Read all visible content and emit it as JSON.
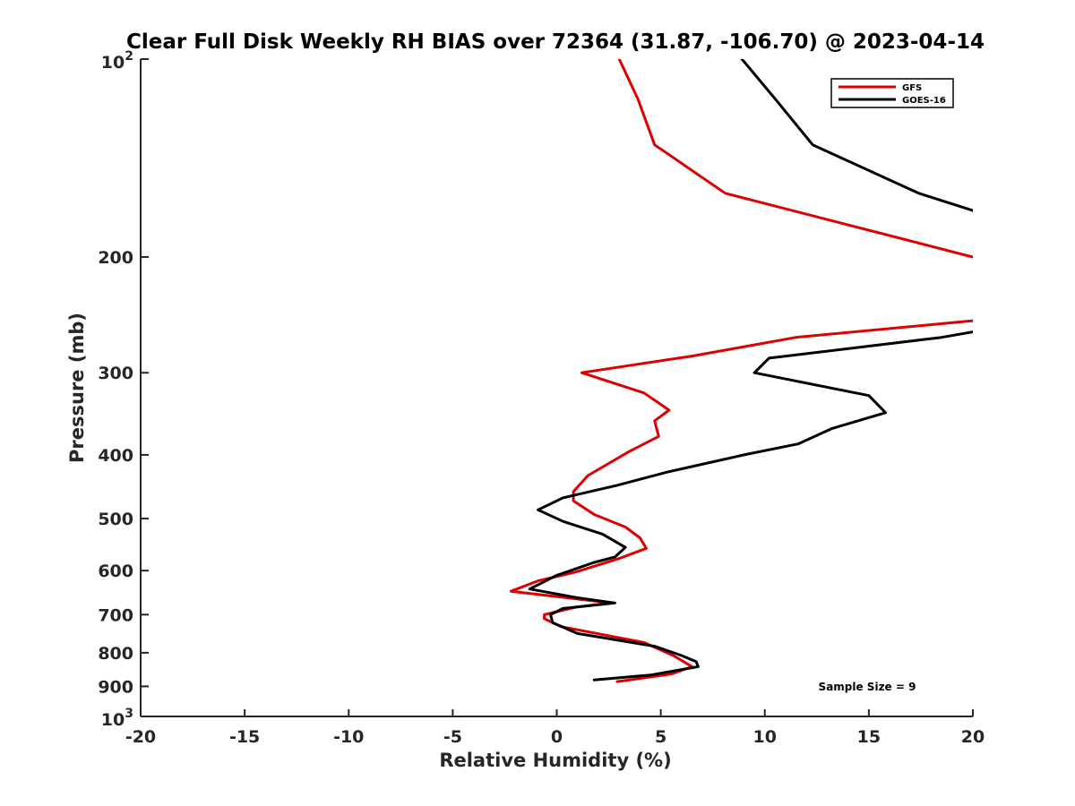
{
  "chart_data": {
    "type": "line",
    "title": "Clear Full Disk Weekly RH BIAS over 72364 (31.87, -106.70) @ 2023-04-14",
    "xlabel": "Relative Humidity (%)",
    "ylabel": "Pressure (mb)",
    "xlim": [
      -20,
      20
    ],
    "ylim": [
      100,
      1000
    ],
    "y_scale": "log",
    "y_reversed": true,
    "x_ticks": [
      "-20",
      "-15",
      "-10",
      "-5",
      "0",
      "5",
      "10",
      "15",
      "20"
    ],
    "y_ticks": [
      {
        "value": 100,
        "base": "10",
        "exp": "2"
      },
      {
        "value": 200,
        "label": "200"
      },
      {
        "value": 300,
        "label": "300"
      },
      {
        "value": 400,
        "label": "400"
      },
      {
        "value": 500,
        "label": "500"
      },
      {
        "value": 600,
        "label": "600"
      },
      {
        "value": 700,
        "label": "700"
      },
      {
        "value": 800,
        "label": "800"
      },
      {
        "value": 900,
        "label": "900"
      },
      {
        "value": 1000,
        "base": "10",
        "exp": "3"
      }
    ],
    "grid": false,
    "legend_position": "top-right",
    "series": [
      {
        "name": "GFS",
        "color": "#dd0000",
        "points": [
          [
            3.0,
            100
          ],
          [
            3.9,
            115
          ],
          [
            4.7,
            135
          ],
          [
            8.1,
            160
          ],
          [
            20.0,
            200
          ],
          [
            null,
            null
          ],
          [
            20.0,
            250
          ],
          [
            11.5,
            265
          ],
          [
            6.5,
            283
          ],
          [
            1.2,
            300
          ],
          [
            4.2,
            322
          ],
          [
            5.4,
            342
          ],
          [
            4.7,
            355
          ],
          [
            4.9,
            375
          ],
          [
            3.5,
            395
          ],
          [
            1.5,
            430
          ],
          [
            0.8,
            455
          ],
          [
            0.8,
            470
          ],
          [
            1.8,
            493
          ],
          [
            3.3,
            515
          ],
          [
            4.0,
            535
          ],
          [
            4.3,
            555
          ],
          [
            3.0,
            575
          ],
          [
            0.9,
            603
          ],
          [
            -0.9,
            622
          ],
          [
            -2.2,
            645
          ],
          [
            0.5,
            660
          ],
          [
            2.6,
            672
          ],
          [
            0.9,
            682
          ],
          [
            -0.6,
            700
          ],
          [
            -0.6,
            710
          ],
          [
            0.2,
            730
          ],
          [
            4.2,
            772
          ],
          [
            5.6,
            808
          ],
          [
            6.5,
            840
          ],
          [
            5.5,
            862
          ],
          [
            2.9,
            885
          ]
        ]
      },
      {
        "name": "GOES-16",
        "color": "#000000",
        "points": [
          [
            8.9,
            100
          ],
          [
            10.5,
            115
          ],
          [
            12.3,
            135
          ],
          [
            17.4,
            160
          ],
          [
            20.0,
            170
          ],
          [
            null,
            null
          ],
          [
            20.0,
            260
          ],
          [
            18.5,
            265
          ],
          [
            10.2,
            285
          ],
          [
            9.5,
            300
          ],
          [
            15.0,
            325
          ],
          [
            15.8,
            345
          ],
          [
            13.2,
            365
          ],
          [
            11.6,
            385
          ],
          [
            9.0,
            400
          ],
          [
            5.3,
            425
          ],
          [
            2.9,
            445
          ],
          [
            0.3,
            465
          ],
          [
            -0.9,
            485
          ],
          [
            0.3,
            505
          ],
          [
            2.2,
            528
          ],
          [
            3.3,
            553
          ],
          [
            2.8,
            572
          ],
          [
            1.8,
            583
          ],
          [
            0.0,
            610
          ],
          [
            -1.3,
            640
          ],
          [
            1.0,
            660
          ],
          [
            2.8,
            672
          ],
          [
            0.3,
            685
          ],
          [
            -0.3,
            700
          ],
          [
            -0.2,
            720
          ],
          [
            1.0,
            748
          ],
          [
            4.7,
            782
          ],
          [
            6.0,
            808
          ],
          [
            6.7,
            825
          ],
          [
            6.8,
            840
          ],
          [
            4.5,
            865
          ],
          [
            1.8,
            880
          ]
        ]
      }
    ],
    "annotation": "Sample Size = 9"
  }
}
